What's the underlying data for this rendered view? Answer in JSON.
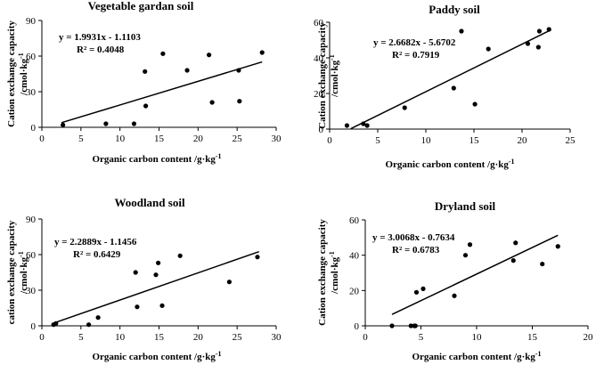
{
  "chart_data": [
    {
      "type": "scatter",
      "title": "Vegetable gardan soil",
      "xlabel": "Organic carbon content  /g·kg",
      "xlabel_sup": "-1",
      "ylabel_line1": "Cation exchange capacity",
      "ylabel_line2": "/cmol·kg",
      "ylabel_sup": "-1",
      "xlim": [
        0,
        30
      ],
      "ylim": [
        0,
        90
      ],
      "xticks": [
        0,
        5,
        10,
        15,
        20,
        25,
        30
      ],
      "yticks": [
        0,
        30,
        60,
        90
      ],
      "equation": "y = 1.9931x - 1.1103",
      "r2": "R² = 0.4048",
      "trend": {
        "slope": 1.9931,
        "intercept": -1.1103,
        "x_range": [
          2.5,
          28.2
        ]
      },
      "x": [
        2.7,
        8.2,
        11.8,
        13.3,
        13.2,
        15.5,
        18.6,
        21.4,
        21.8,
        25.2,
        25.3,
        28.2
      ],
      "y": [
        2,
        3,
        3,
        18,
        47,
        62,
        48,
        61,
        21,
        48,
        22,
        63
      ]
    },
    {
      "type": "scatter",
      "title": "Paddy soil",
      "xlabel": "Organic carbon content  /g·kg",
      "xlabel_sup": "-1",
      "ylabel_line1": "Cation exchange capacity",
      "ylabel_line2": "/cmol·kg",
      "ylabel_sup": "-1",
      "xlim": [
        0,
        25
      ],
      "ylim": [
        0,
        60
      ],
      "xticks": [
        0,
        5,
        10,
        15,
        20,
        25
      ],
      "yticks": [
        0,
        20,
        40,
        60
      ],
      "equation": "y = 2.6682x - 5.6702",
      "r2": "R² = 0.7919",
      "trend": {
        "slope": 2.6682,
        "intercept": -5.6702,
        "x_range": [
          2.2,
          23
        ]
      },
      "x": [
        1.8,
        3.5,
        3.9,
        7.8,
        12.9,
        13.7,
        15.1,
        16.5,
        20.6,
        21.7,
        21.8,
        22.8
      ],
      "y": [
        2,
        3,
        2,
        12,
        23,
        55,
        14,
        45,
        48,
        46,
        55,
        56
      ]
    },
    {
      "type": "scatter",
      "title": "Woodland soil",
      "xlabel": "Organic carbon content  /g·kg",
      "xlabel_sup": "-1",
      "ylabel_line1": "cation exchange capacity",
      "ylabel_line2": "/cmol·kg",
      "ylabel_sup": "-1",
      "xlim": [
        0,
        30
      ],
      "ylim": [
        0,
        90
      ],
      "xticks": [
        0,
        5,
        10,
        15,
        20,
        25,
        30
      ],
      "yticks": [
        0,
        30,
        60,
        90
      ],
      "equation": "y = 2.2889x - 1.1456",
      "r2": "R² = 0.6429",
      "trend": {
        "slope": 2.2889,
        "intercept": -1.1456,
        "x_range": [
          1.3,
          27.8
        ]
      },
      "x": [
        1.5,
        1.8,
        6.0,
        7.2,
        12.0,
        12.2,
        14.6,
        14.9,
        15.4,
        17.7,
        24.0,
        27.6
      ],
      "y": [
        1,
        2,
        1,
        7,
        45,
        16,
        43,
        53,
        17,
        59,
        37,
        58
      ]
    },
    {
      "type": "scatter",
      "title": "Dryland soil",
      "xlabel": "Organic carbon content  /g·kg",
      "xlabel_sup": "-1",
      "ylabel_line1": "Cation exchange capacity",
      "ylabel_line2": "/cmol·kg",
      "ylabel_sup": "-1",
      "xlim": [
        0,
        20
      ],
      "ylim": [
        0,
        60
      ],
      "xticks": [
        0,
        5,
        10,
        15,
        20
      ],
      "yticks": [
        0,
        20,
        40,
        60
      ],
      "equation": "y = 3.0068x - 0.7634",
      "r2": "R² = 0.6783",
      "trend": {
        "slope": 3.0068,
        "intercept": -0.7634,
        "x_range": [
          2.4,
          17.3
        ]
      },
      "x": [
        2.4,
        4.1,
        4.4,
        4.5,
        4.6,
        5.2,
        8.0,
        9.0,
        9.4,
        13.3,
        13.5,
        15.9,
        17.3
      ],
      "y": [
        0,
        0,
        0,
        0,
        19,
        21,
        17,
        40,
        46,
        37,
        47,
        35,
        45
      ]
    }
  ]
}
